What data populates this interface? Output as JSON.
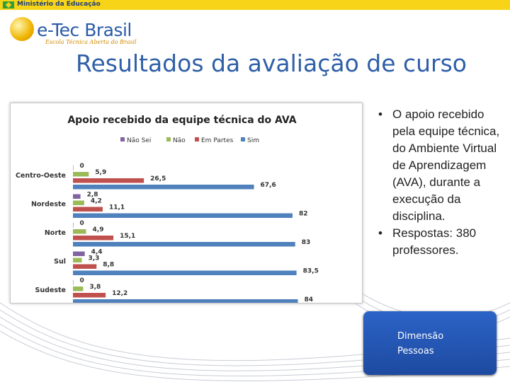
{
  "header": {
    "ministry": "Ministério da Educação"
  },
  "logo": {
    "brand": "e-Tec Brasil",
    "tagline": "Escola Técnica Aberta do Brasil"
  },
  "page_title": "Resultados da avaliação de curso",
  "bullets": [
    "O apoio recebido pela equipe técnica, do Ambiente Virtual de Aprendizagem (AVA), durante a execução da disciplina.",
    "Respostas: 380 professores."
  ],
  "dimension_box": {
    "line1": "Dimensão",
    "line2": "Pessoas"
  },
  "colors": {
    "title": "#2f5fa7",
    "accent": "#f7d417"
  },
  "chart_data": {
    "type": "bar",
    "orientation": "horizontal",
    "title": "Apoio recebido da equipe técnica do AVA",
    "categories": [
      "Centro-Oeste",
      "Nordeste",
      "Norte",
      "Sul",
      "Sudeste"
    ],
    "series": [
      {
        "name": "Não Sei",
        "color": "#8064a2",
        "values": [
          0,
          2.8,
          0,
          4.4,
          0
        ]
      },
      {
        "name": "Não",
        "color": "#9bbb59",
        "values": [
          5.9,
          4.2,
          4.9,
          3.3,
          3.8
        ]
      },
      {
        "name": "Em Partes",
        "color": "#c0504d",
        "values": [
          26.5,
          11.1,
          15.1,
          8.8,
          12.2
        ]
      },
      {
        "name": "Sim",
        "color": "#4f81bd",
        "values": [
          67.6,
          82,
          83,
          83.5,
          84
        ]
      }
    ],
    "value_labels": [
      [
        "0",
        "2,8",
        "0",
        "4,4",
        "0"
      ],
      [
        "5,9",
        "4,2",
        "4,9",
        "3,3",
        "3,8"
      ],
      [
        "26,5",
        "11,1",
        "15,1",
        "8,8",
        "12,2"
      ],
      [
        "67,6",
        "82",
        "83",
        "83,5",
        "84"
      ]
    ],
    "xlim": [
      0,
      100
    ],
    "legend_position": "top",
    "grid": false
  }
}
